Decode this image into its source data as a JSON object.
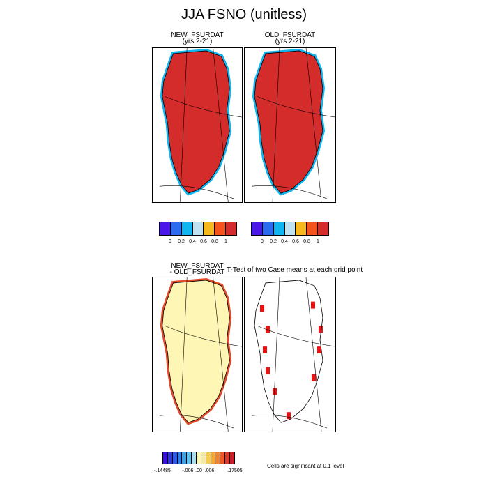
{
  "figure": {
    "title": "JJA FSNO (unitless)"
  },
  "panels": {
    "new": {
      "line1": "NEW_FSURDAT",
      "line2": "(yrs 2-21)"
    },
    "old": {
      "line1": "OLD_FSURDAT",
      "line2": "(yrs 2-21)"
    },
    "diff": {
      "line1": "NEW_FSURDAT",
      "line2": "- OLD_FSURDAT"
    },
    "ttest": {
      "title": "T-Test of two Case means at each grid point",
      "note": "Cells are significant at 0.1 level"
    }
  },
  "colorbars": {
    "main": {
      "colors": [
        "#4a17e8",
        "#2a6bf0",
        "#11b6f0",
        "#bfe3f2",
        "#f7b71e",
        "#f4541c",
        "#d42b2b"
      ],
      "labels": [
        "0",
        "0.2",
        "0.4",
        "0.6",
        "0.8",
        "1"
      ]
    },
    "diff": {
      "colors": [
        "#3a10d8",
        "#2f35e8",
        "#2b5be8",
        "#2c7ee8",
        "#35a3ea",
        "#5ec3ee",
        "#a9dff2",
        "#fdf6b4",
        "#f8e9a0",
        "#f7cc4e",
        "#f6ab2b",
        "#f4822b",
        "#f2582a",
        "#e3342b",
        "#c8202a"
      ],
      "labels": [
        "-.14485",
        "-.006",
        ".00",
        ".006",
        ".17505"
      ]
    }
  },
  "map_style": {
    "land_color": "#d42b2b",
    "diff_land_color": "#fdf6b4",
    "significant_color": "#ee1111",
    "outline_color": "#000000"
  }
}
